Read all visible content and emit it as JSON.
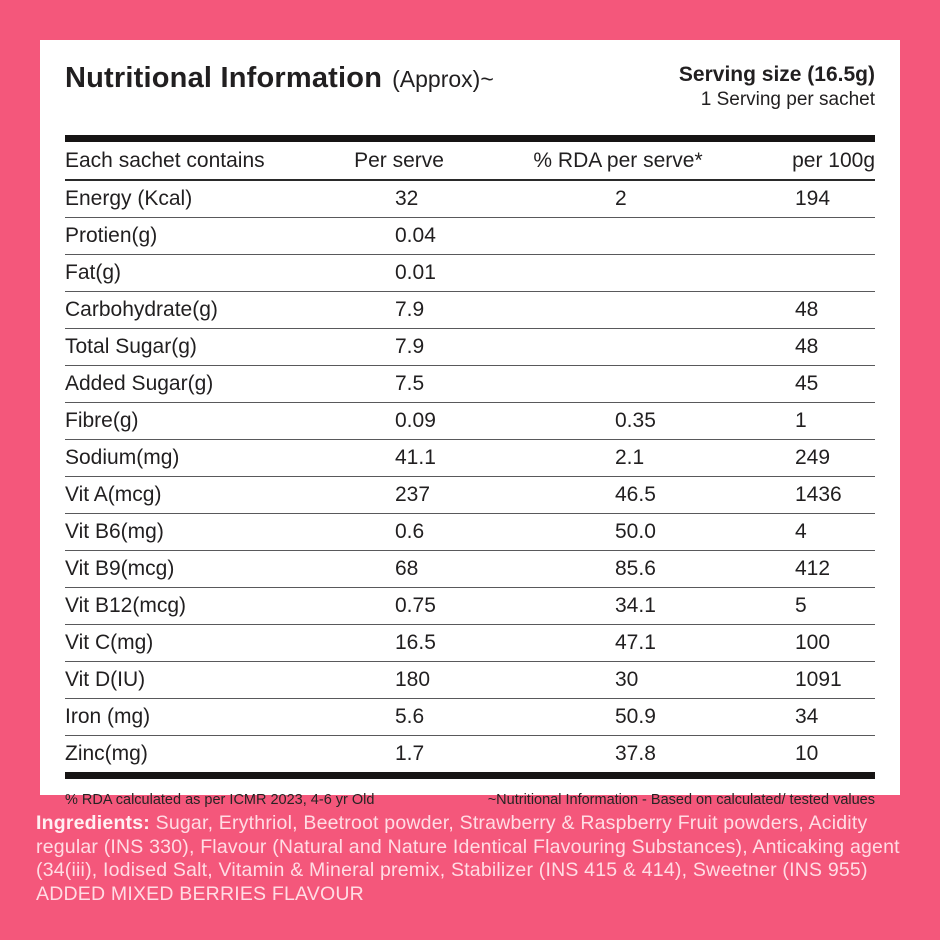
{
  "header": {
    "title": "Nutritional Information",
    "title_suffix": "(Approx)~",
    "serving_size": "Serving size (16.5g)",
    "servings_per_pack": "1 Serving per sachet"
  },
  "table": {
    "columns": [
      "Each sachet contains",
      "Per serve",
      "% RDA per serve*",
      "per 100g"
    ],
    "rows": [
      {
        "label": "Energy (Kcal)",
        "per_serve": "32",
        "rda": "2",
        "per_100g": "194"
      },
      {
        "label": "Protien(g)",
        "per_serve": "0.04",
        "rda": "",
        "per_100g": ""
      },
      {
        "label": "Fat(g)",
        "per_serve": "0.01",
        "rda": "",
        "per_100g": ""
      },
      {
        "label": "Carbohydrate(g)",
        "per_serve": "7.9",
        "rda": "",
        "per_100g": "48"
      },
      {
        "label": "Total Sugar(g)",
        "per_serve": "7.9",
        "rda": "",
        "per_100g": "48"
      },
      {
        "label": "Added Sugar(g)",
        "per_serve": "7.5",
        "rda": "",
        "per_100g": "45"
      },
      {
        "label": "Fibre(g)",
        "per_serve": "0.09",
        "rda": "0.35",
        "per_100g": "1"
      },
      {
        "label": "Sodium(mg)",
        "per_serve": "41.1",
        "rda": "2.1",
        "per_100g": "249"
      },
      {
        "label": "Vit A(mcg)",
        "per_serve": "237",
        "rda": "46.5",
        "per_100g": "1436"
      },
      {
        "label": "Vit B6(mg)",
        "per_serve": "0.6",
        "rda": "50.0",
        "per_100g": "4"
      },
      {
        "label": "Vit B9(mcg)",
        "per_serve": "68",
        "rda": "85.6",
        "per_100g": "412"
      },
      {
        "label": "Vit B12(mcg)",
        "per_serve": "0.75",
        "rda": "34.1",
        "per_100g": "5"
      },
      {
        "label": "Vit C(mg)",
        "per_serve": "16.5",
        "rda": "47.1",
        "per_100g": "100"
      },
      {
        "label": "Vit D(IU)",
        "per_serve": "180",
        "rda": "30",
        "per_100g": "1091"
      },
      {
        "label": "Iron (mg)",
        "per_serve": "5.6",
        "rda": "50.9",
        "per_100g": "34"
      },
      {
        "label": "Zinc(mg)",
        "per_serve": "1.7",
        "rda": "37.8",
        "per_100g": "10"
      }
    ]
  },
  "footnotes": {
    "left": "% RDA calculated as per ICMR 2023, 4-6 yr Old",
    "right": "~Nutritional Information - Based on calculated/ tested values"
  },
  "ingredients": {
    "label": "Ingredients:",
    "text": " Sugar, Erythriol, Beetroot powder, Strawberry & Raspberry Fruit powders, Acidity regular (INS 330), Flavour (Natural and Nature Identical Flavouring Substances), Anticaking agent (34(iii), Iodised Salt, Vitamin & Mineral premix, Stabilizer (INS 415 & 414), Sweetner (INS 955) ADDED MIXED BERRIES FLAVOUR"
  },
  "colors": {
    "background_pink": "#f4577b",
    "card_white": "#ffffff",
    "text_dark": "#211f20",
    "ingredients_text": "#ffdce4",
    "rule_black": "#161414",
    "separator_gray": "#59595b"
  }
}
